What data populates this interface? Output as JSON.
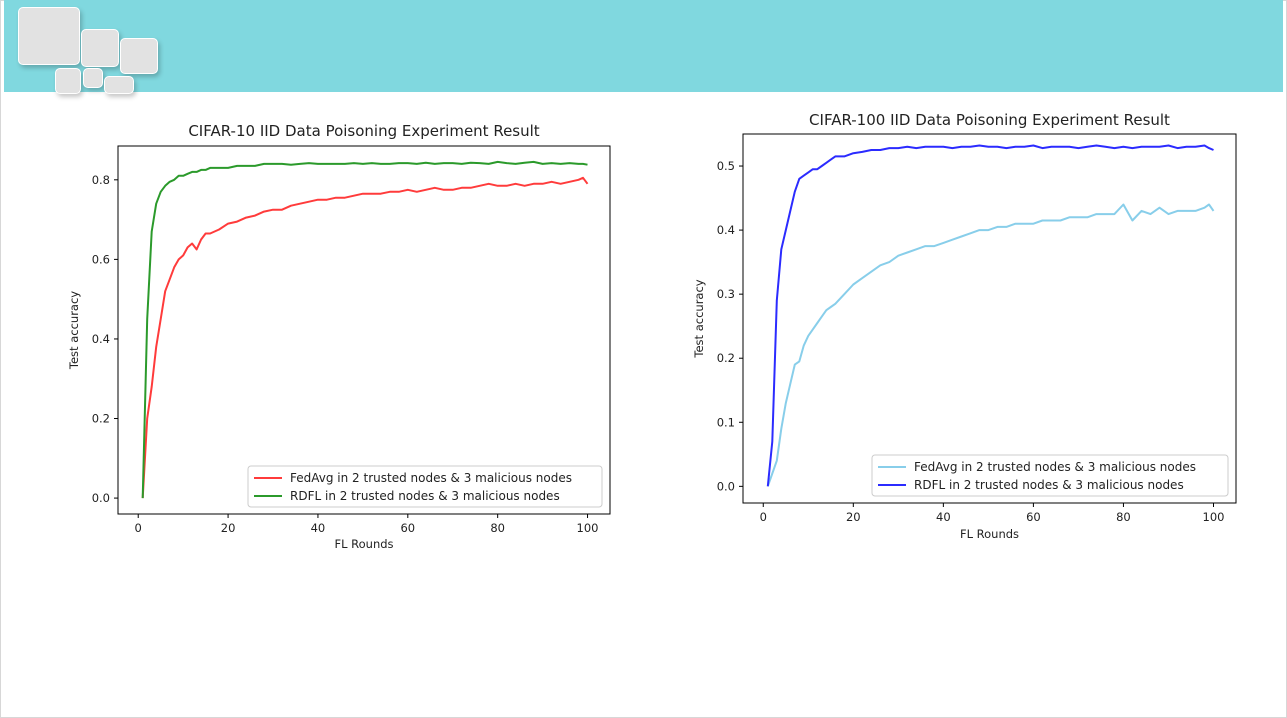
{
  "slide": {
    "header_color": "#80d8df"
  },
  "chart_data": [
    {
      "type": "line",
      "title": "CIFAR-10 IID Data Poisoning Experiment Result",
      "xlabel": "FL Rounds",
      "ylabel": "Test accuracy",
      "xlim": [
        -4.5,
        105
      ],
      "ylim": [
        -0.04,
        0.885
      ],
      "xticks": [
        0,
        20,
        40,
        60,
        80,
        100
      ],
      "yticks": [
        0.0,
        0.2,
        0.4,
        0.6,
        0.8
      ],
      "ytick_labels": [
        "0.0",
        "0.2",
        "0.4",
        "0.6",
        "0.8"
      ],
      "grid": false,
      "legend_position": "lower-right",
      "series": [
        {
          "name": "FedAvg in 2 trusted nodes & 3 malicious nodes",
          "color": "#ff3b3b",
          "x": [
            1,
            2,
            3,
            4,
            5,
            6,
            7,
            8,
            9,
            10,
            11,
            12,
            13,
            14,
            15,
            16,
            18,
            20,
            22,
            24,
            26,
            28,
            30,
            32,
            34,
            36,
            38,
            40,
            42,
            44,
            46,
            48,
            50,
            52,
            54,
            56,
            58,
            60,
            62,
            64,
            66,
            68,
            70,
            72,
            74,
            76,
            78,
            80,
            82,
            84,
            86,
            88,
            90,
            92,
            94,
            96,
            98,
            99,
            100
          ],
          "values": [
            0.0,
            0.2,
            0.28,
            0.38,
            0.45,
            0.52,
            0.55,
            0.58,
            0.6,
            0.61,
            0.63,
            0.64,
            0.625,
            0.65,
            0.665,
            0.665,
            0.675,
            0.69,
            0.695,
            0.705,
            0.71,
            0.72,
            0.725,
            0.725,
            0.735,
            0.74,
            0.745,
            0.75,
            0.75,
            0.755,
            0.755,
            0.76,
            0.765,
            0.765,
            0.765,
            0.77,
            0.77,
            0.775,
            0.77,
            0.775,
            0.78,
            0.775,
            0.775,
            0.78,
            0.78,
            0.785,
            0.79,
            0.785,
            0.785,
            0.79,
            0.785,
            0.79,
            0.79,
            0.795,
            0.79,
            0.795,
            0.8,
            0.805,
            0.79
          ]
        },
        {
          "name": "RDFL in 2 trusted nodes & 3 malicious nodes",
          "color": "#2b9a2b",
          "x": [
            1,
            2,
            3,
            4,
            5,
            6,
            7,
            8,
            9,
            10,
            11,
            12,
            13,
            14,
            15,
            16,
            18,
            20,
            22,
            24,
            26,
            28,
            30,
            32,
            34,
            36,
            38,
            40,
            42,
            44,
            46,
            48,
            50,
            52,
            54,
            56,
            58,
            60,
            62,
            64,
            66,
            68,
            70,
            72,
            74,
            76,
            78,
            80,
            82,
            84,
            86,
            88,
            90,
            92,
            94,
            96,
            98,
            99,
            100
          ],
          "values": [
            0.0,
            0.45,
            0.67,
            0.74,
            0.77,
            0.785,
            0.795,
            0.8,
            0.81,
            0.81,
            0.815,
            0.82,
            0.82,
            0.825,
            0.825,
            0.83,
            0.83,
            0.83,
            0.835,
            0.835,
            0.835,
            0.84,
            0.84,
            0.84,
            0.838,
            0.84,
            0.842,
            0.84,
            0.84,
            0.84,
            0.84,
            0.842,
            0.84,
            0.842,
            0.84,
            0.84,
            0.842,
            0.842,
            0.84,
            0.843,
            0.84,
            0.842,
            0.842,
            0.84,
            0.843,
            0.842,
            0.84,
            0.845,
            0.842,
            0.84,
            0.843,
            0.845,
            0.84,
            0.842,
            0.84,
            0.842,
            0.84,
            0.84,
            0.838
          ]
        }
      ]
    },
    {
      "type": "line",
      "title": "CIFAR-100 IID Data Poisoning Experiment Result",
      "xlabel": "FL Rounds",
      "ylabel": "Test accuracy",
      "xlim": [
        -4.5,
        105
      ],
      "ylim": [
        -0.026,
        0.55
      ],
      "xticks": [
        0,
        20,
        40,
        60,
        80,
        100
      ],
      "yticks": [
        0.0,
        0.1,
        0.2,
        0.3,
        0.4,
        0.5
      ],
      "ytick_labels": [
        "0.0",
        "0.1",
        "0.2",
        "0.3",
        "0.4",
        "0.5"
      ],
      "grid": false,
      "legend_position": "lower-right",
      "series": [
        {
          "name": "FedAvg in 2 trusted nodes & 3 malicious nodes",
          "color": "#88ceea",
          "x": [
            1,
            2,
            3,
            4,
            5,
            6,
            7,
            8,
            9,
            10,
            11,
            12,
            13,
            14,
            15,
            16,
            18,
            20,
            22,
            24,
            26,
            28,
            30,
            32,
            34,
            36,
            38,
            40,
            42,
            44,
            46,
            48,
            50,
            52,
            54,
            56,
            58,
            60,
            62,
            64,
            66,
            68,
            70,
            72,
            74,
            76,
            78,
            80,
            82,
            84,
            86,
            88,
            90,
            92,
            94,
            96,
            98,
            99,
            100
          ],
          "values": [
            0.0,
            0.02,
            0.04,
            0.09,
            0.13,
            0.16,
            0.19,
            0.195,
            0.22,
            0.235,
            0.245,
            0.255,
            0.265,
            0.275,
            0.28,
            0.285,
            0.3,
            0.315,
            0.325,
            0.335,
            0.345,
            0.35,
            0.36,
            0.365,
            0.37,
            0.375,
            0.375,
            0.38,
            0.385,
            0.39,
            0.395,
            0.4,
            0.4,
            0.405,
            0.405,
            0.41,
            0.41,
            0.41,
            0.415,
            0.415,
            0.415,
            0.42,
            0.42,
            0.42,
            0.425,
            0.425,
            0.425,
            0.44,
            0.415,
            0.43,
            0.425,
            0.435,
            0.425,
            0.43,
            0.43,
            0.43,
            0.435,
            0.44,
            0.43
          ]
        },
        {
          "name": "RDFL in 2 trusted nodes & 3 malicious nodes",
          "color": "#2b2bff",
          "x": [
            1,
            2,
            3,
            4,
            5,
            6,
            7,
            8,
            9,
            10,
            11,
            12,
            13,
            14,
            15,
            16,
            18,
            20,
            22,
            24,
            26,
            28,
            30,
            32,
            34,
            36,
            38,
            40,
            42,
            44,
            46,
            48,
            50,
            52,
            54,
            56,
            58,
            60,
            62,
            64,
            66,
            68,
            70,
            72,
            74,
            76,
            78,
            80,
            82,
            84,
            86,
            88,
            90,
            92,
            94,
            96,
            98,
            99,
            100
          ],
          "values": [
            0.0,
            0.07,
            0.29,
            0.37,
            0.4,
            0.43,
            0.46,
            0.48,
            0.485,
            0.49,
            0.495,
            0.495,
            0.5,
            0.505,
            0.51,
            0.515,
            0.515,
            0.52,
            0.522,
            0.525,
            0.525,
            0.528,
            0.528,
            0.53,
            0.528,
            0.53,
            0.53,
            0.53,
            0.528,
            0.53,
            0.53,
            0.532,
            0.53,
            0.53,
            0.528,
            0.53,
            0.53,
            0.532,
            0.528,
            0.53,
            0.53,
            0.53,
            0.528,
            0.53,
            0.532,
            0.53,
            0.528,
            0.53,
            0.528,
            0.53,
            0.53,
            0.53,
            0.532,
            0.528,
            0.53,
            0.53,
            0.532,
            0.528,
            0.525
          ]
        }
      ]
    }
  ]
}
